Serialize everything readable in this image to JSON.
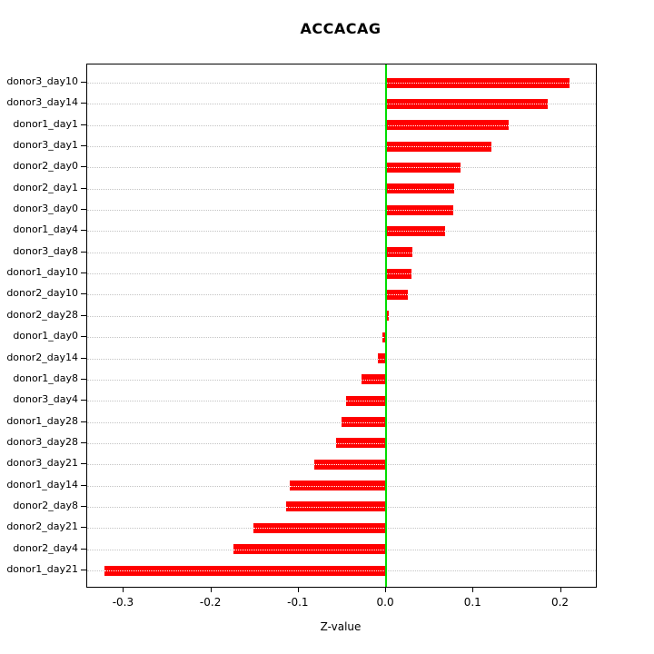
{
  "chart_data": {
    "type": "bar",
    "orientation": "horizontal",
    "title": "ACCACAG",
    "xlabel": "Z-value",
    "categories": [
      "donor3_day10",
      "donor3_day14",
      "donor1_day1",
      "donor3_day1",
      "donor2_day0",
      "donor2_day1",
      "donor3_day0",
      "donor1_day4",
      "donor3_day8",
      "donor1_day10",
      "donor2_day10",
      "donor2_day28",
      "donor1_day0",
      "donor2_day14",
      "donor1_day8",
      "donor3_day4",
      "donor1_day28",
      "donor3_day28",
      "donor3_day21",
      "donor1_day14",
      "donor2_day8",
      "donor2_day21",
      "donor2_day4",
      "donor1_day21"
    ],
    "values": [
      0.21,
      0.185,
      0.14,
      0.12,
      0.085,
      0.078,
      0.077,
      0.068,
      0.03,
      0.029,
      0.025,
      0.003,
      -0.004,
      -0.009,
      -0.028,
      -0.046,
      -0.051,
      -0.057,
      -0.082,
      -0.11,
      -0.114,
      -0.152,
      -0.175,
      -0.322
    ],
    "xlim": [
      -0.342,
      0.24
    ],
    "xticks": [
      -0.3,
      -0.2,
      -0.1,
      0.0,
      0.1,
      0.2
    ],
    "xtick_labels": [
      "-0.3",
      "-0.2",
      "-0.1",
      "0.0",
      "0.1",
      "0.2"
    ],
    "bar_color": "#ff0000",
    "zero_line_color": "#00dd00",
    "grid_color": "#c4c4c4",
    "grid": true,
    "legend_position": "none"
  }
}
